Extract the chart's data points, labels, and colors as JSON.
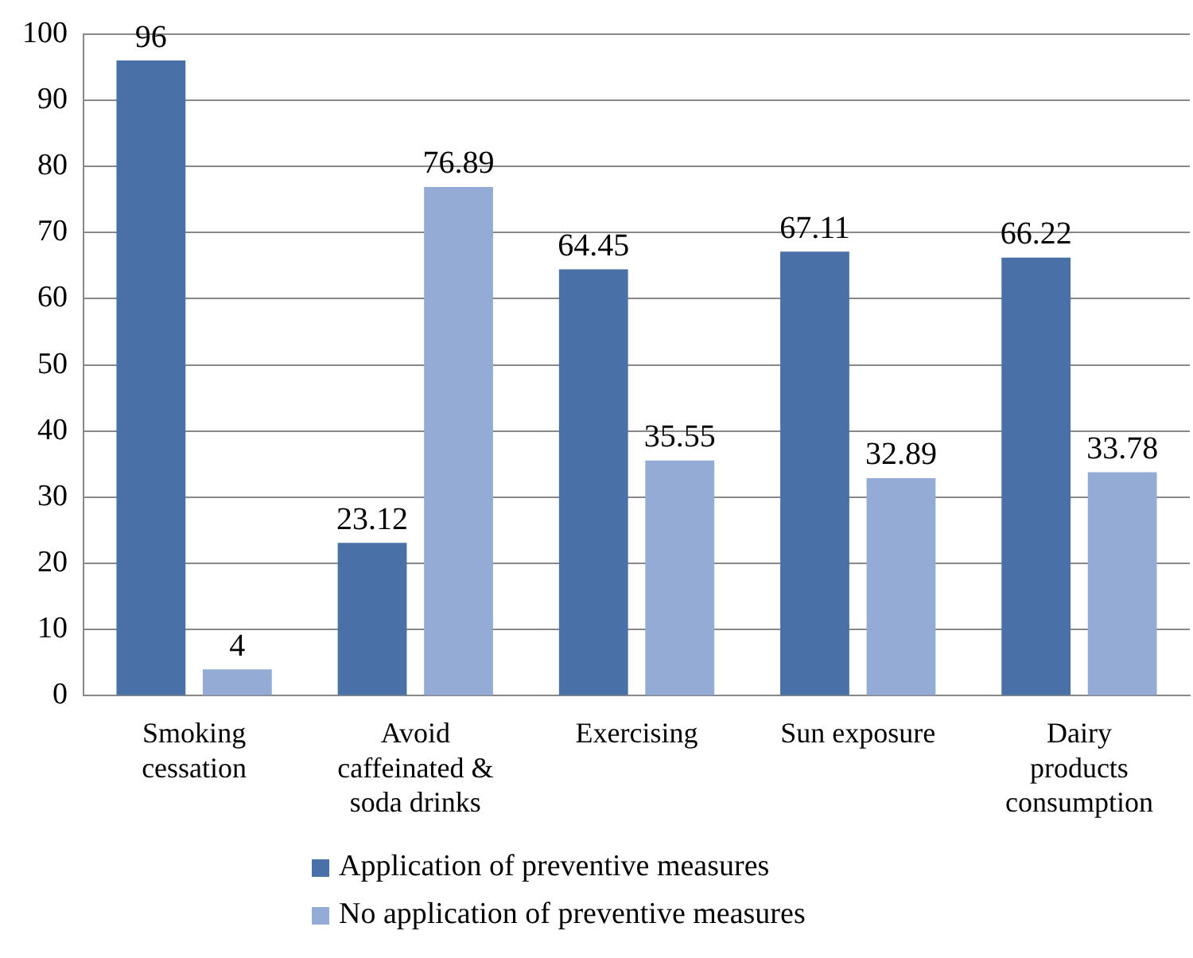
{
  "chart_data": {
    "type": "bar",
    "categories": [
      "Smoking\ncessation",
      "Avoid\ncaffeinated &\nsoda drinks",
      "Exercising",
      "Sun exposure",
      "Dairy\nproducts\nconsumption"
    ],
    "series": [
      {
        "name": "Application of preventive measures",
        "color": "#4a70a8",
        "values": [
          96,
          23.12,
          64.45,
          67.11,
          66.22
        ]
      },
      {
        "name": "No application of preventive measures",
        "color": "#94abd6",
        "values": [
          4,
          76.89,
          35.55,
          32.89,
          33.78
        ]
      }
    ],
    "ylim": [
      0,
      100
    ],
    "yticks": [
      0,
      10,
      20,
      30,
      40,
      50,
      60,
      70,
      80,
      90,
      100
    ],
    "grid": "y",
    "legend": "bottom",
    "data_labels": true
  }
}
